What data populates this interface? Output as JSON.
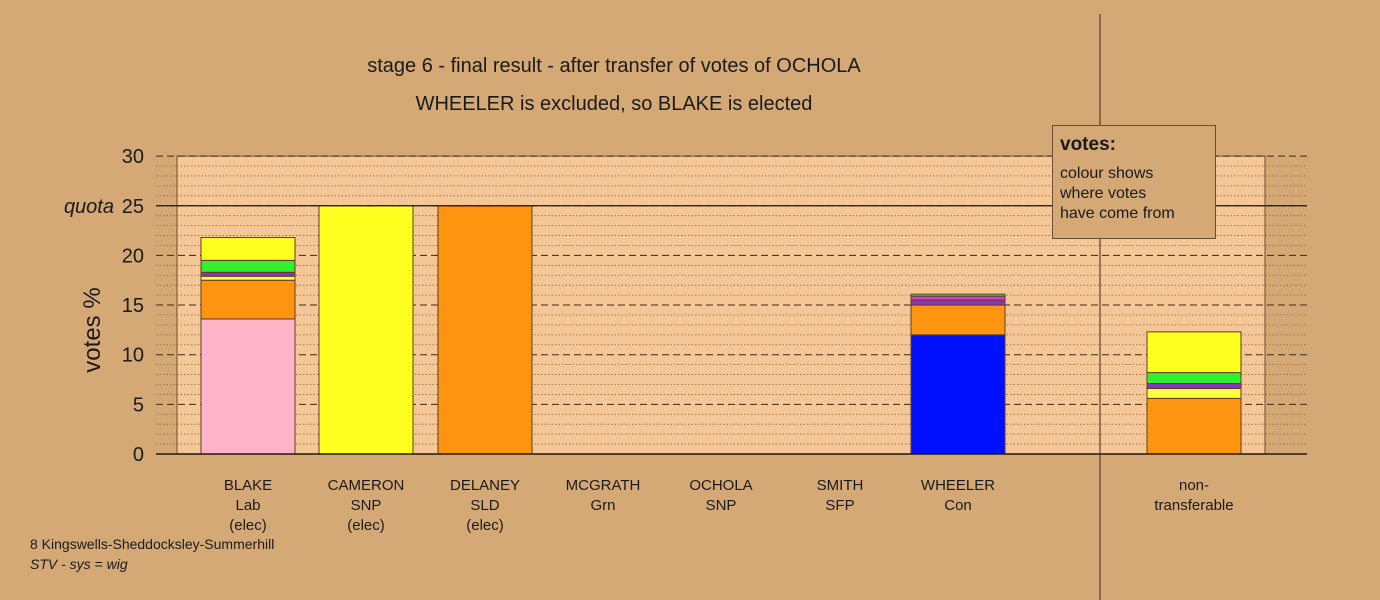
{
  "chart_data": {
    "type": "bar",
    "stacked": true,
    "title": "stage 6 - final result - after transfer of votes of OCHOLA",
    "subtitle": "WHEELER is excluded, so BLAKE is elected",
    "ylabel": "votes %",
    "quota_label": "quota",
    "quota": 25,
    "ylim": [
      0,
      30
    ],
    "yticks": [
      0,
      5,
      10,
      15,
      20,
      25,
      30
    ],
    "grid": "dashed every 5, dotted every 1",
    "categories": [
      {
        "lines": [
          "BLAKE",
          "Lab",
          "(elec)"
        ]
      },
      {
        "lines": [
          "CAMERON",
          "SNP",
          "(elec)"
        ]
      },
      {
        "lines": [
          "DELANEY",
          "SLD",
          "(elec)"
        ]
      },
      {
        "lines": [
          "MCGRATH",
          "Grn"
        ]
      },
      {
        "lines": [
          "OCHOLA",
          "SNP"
        ]
      },
      {
        "lines": [
          "SMITH",
          "SFP"
        ]
      },
      {
        "lines": [
          "WHEELER",
          "Con"
        ]
      },
      {
        "lines": [
          "non-",
          "transferable"
        ]
      }
    ],
    "stacks": [
      [
        {
          "value": 13.6,
          "color": "#ffb3c8"
        },
        {
          "value": 3.9,
          "color": "#ff9410"
        },
        {
          "value": 0.4,
          "color": "#ffff40"
        },
        {
          "value": 0.4,
          "color": "#9030c0"
        },
        {
          "value": 1.2,
          "color": "#30f030"
        },
        {
          "value": 2.3,
          "color": "#ffff20"
        }
      ],
      [
        {
          "value": 25.0,
          "color": "#ffff20"
        }
      ],
      [
        {
          "value": 25.0,
          "color": "#ff9410"
        }
      ],
      [],
      [],
      [],
      [
        {
          "value": 12.0,
          "color": "#0010ff"
        },
        {
          "value": 3.0,
          "color": "#ff9410"
        },
        {
          "value": 0.5,
          "color": "#9030c0"
        },
        {
          "value": 0.4,
          "color": "#d040d0"
        },
        {
          "value": 0.2,
          "color": "#30f030"
        }
      ],
      [
        {
          "value": 5.6,
          "color": "#ff9410"
        },
        {
          "value": 1.0,
          "color": "#ffff40"
        },
        {
          "value": 0.5,
          "color": "#9030c0"
        },
        {
          "value": 1.1,
          "color": "#30f030"
        },
        {
          "value": 4.1,
          "color": "#ffff20"
        }
      ]
    ],
    "colors": {
      "background": "#d4a976",
      "plot_background": "#f5c797",
      "bar_outline": "#5a4020"
    }
  },
  "legend": {
    "title": "votes:",
    "lines": [
      "colour shows",
      "where votes",
      "have come from"
    ]
  },
  "footer": {
    "line1": "8 Kingswells-Sheddocksley-Summerhill",
    "line2": "STV - sys = wig"
  }
}
